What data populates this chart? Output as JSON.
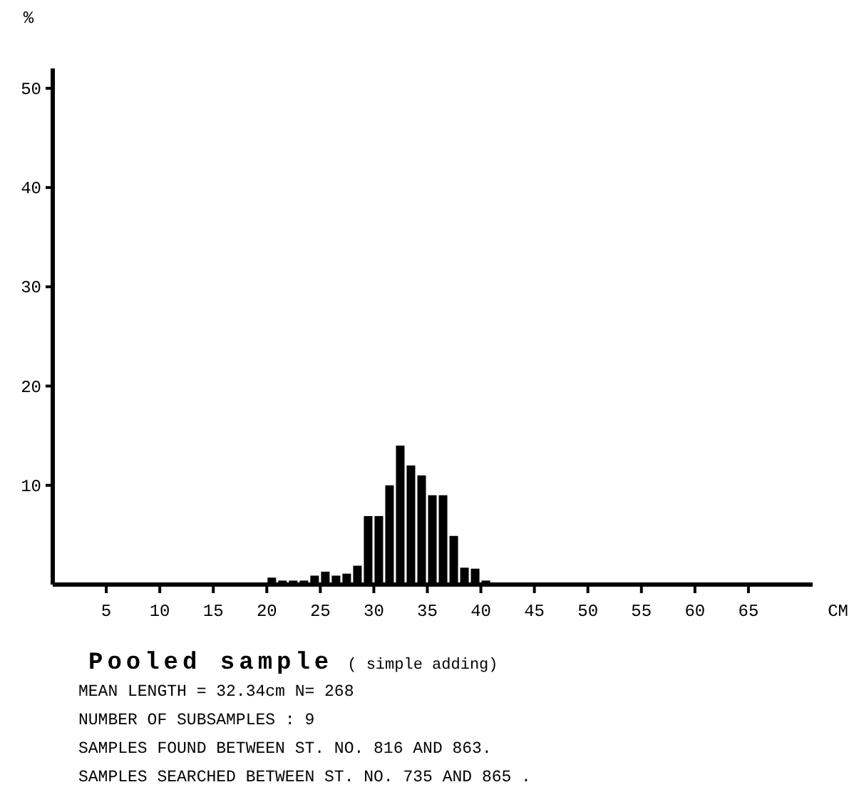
{
  "chart_data": {
    "type": "histogram",
    "title": "Pooled sample",
    "subtitle": "( simple adding)",
    "xlabel": "CM",
    "ylabel": "%",
    "bins": [
      20,
      21,
      22,
      23,
      24,
      25,
      26,
      27,
      28,
      29,
      30,
      31,
      32,
      33,
      34,
      35,
      36,
      37,
      38,
      39,
      40,
      41
    ],
    "values": [
      0.7,
      0.4,
      0.4,
      0.4,
      0.9,
      1.3,
      0.9,
      1.1,
      1.9,
      6.9,
      6.9,
      10,
      14,
      12,
      11,
      9,
      9,
      4.9,
      1.7,
      1.6,
      0.4
    ],
    "color": "#000000",
    "xlim": [
      0,
      71
    ],
    "xticks": [
      5,
      10,
      15,
      20,
      25,
      30,
      35,
      40,
      45,
      50,
      55,
      60,
      65
    ],
    "ylim": [
      0,
      52
    ],
    "yticks": [
      10,
      20,
      30,
      40,
      50
    ],
    "annotations": [
      "MEAN LENGTH = 32.34cm  N=  268",
      "NUMBER OF SUBSAMPLES :  9",
      "SAMPLES FOUND BETWEEN ST. NO. 816 AND  863.",
      "SAMPLES SEARCHED BETWEEN ST. NO. 735 AND  865 ."
    ]
  }
}
